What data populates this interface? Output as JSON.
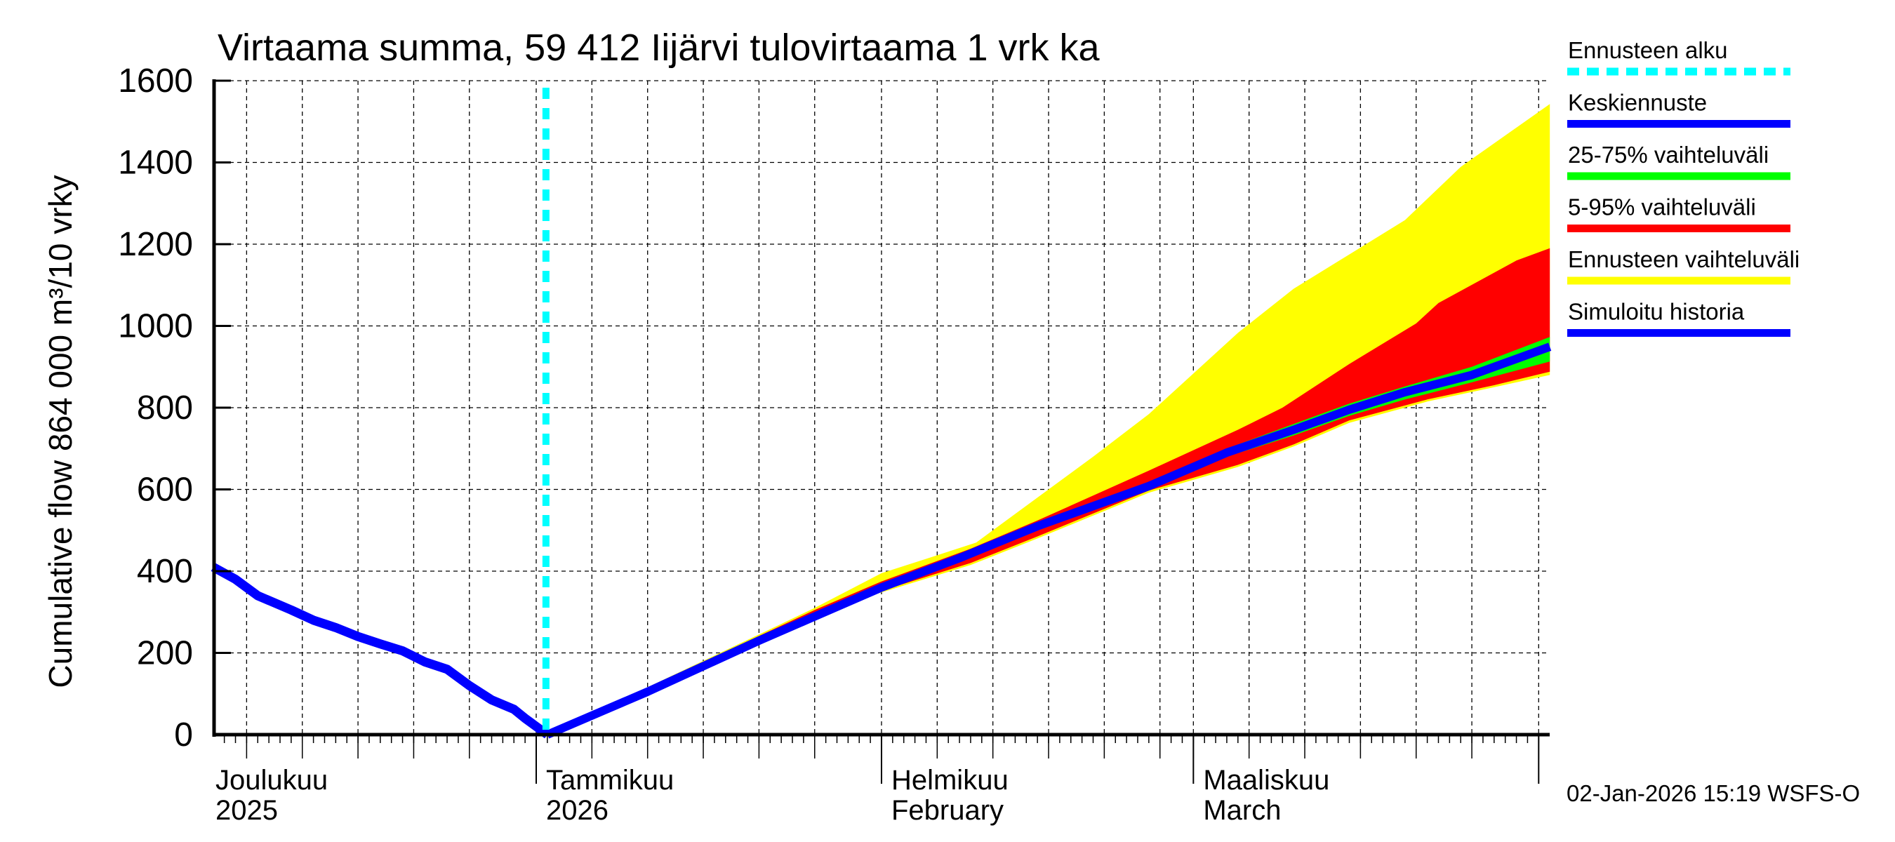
{
  "chart_data": {
    "type": "area",
    "title": "Virtaama summa, 59 412 Iijärvi tulovirtaama 1 vrk ka",
    "ylabel": "Cumulative flow   864 000 m³/10 vrky",
    "xlabel": "",
    "ylim": [
      0,
      1600
    ],
    "yticks": [
      0,
      200,
      400,
      600,
      800,
      1000,
      1200,
      1400,
      1600
    ],
    "grid": true,
    "x_unit": "days since 2026-01-01",
    "xlim": [
      -29,
      91
    ],
    "month_labels": [
      {
        "day": -31,
        "line1": "Joulukuu",
        "line2": "2025"
      },
      {
        "day": 0,
        "line1": "Tammikuu",
        "line2": "2026"
      },
      {
        "day": 31,
        "line1": "Helmikuu",
        "line2": "February"
      },
      {
        "day": 59,
        "line1": "Maaliskuu",
        "line2": "March"
      }
    ],
    "forecast_start_day": 1,
    "legend_position": "right",
    "legend": [
      {
        "label": "Ennusteen alku",
        "color": "#00ffff",
        "style": "dashed"
      },
      {
        "label": "Keskiennuste",
        "color": "#0000ff",
        "style": "solid"
      },
      {
        "label": "25-75% vaihteluväli",
        "color": "#00ff00",
        "style": "solid"
      },
      {
        "label": "5-95% vaihteluväli",
        "color": "#ff0000",
        "style": "solid"
      },
      {
        "label": "Ennusteen vaihteluväli",
        "color": "#ffff00",
        "style": "solid"
      },
      {
        "label": "Simuloitu historia",
        "color": "#0000ff",
        "style": "solid"
      }
    ],
    "series": [
      {
        "name": "Simuloitu historia",
        "x": [
          -29,
          -27,
          -25,
          -22,
          -20,
          -18,
          -16,
          -14,
          -12,
          -10,
          -8,
          -6,
          -4,
          -2,
          -1,
          1
        ],
        "values": [
          410,
          380,
          340,
          305,
          280,
          262,
          240,
          222,
          205,
          178,
          160,
          120,
          85,
          62,
          40,
          0
        ]
      },
      {
        "name": "Keskiennuste",
        "x": [
          1,
          10,
          20,
          31,
          38,
          45,
          55,
          62,
          68,
          73,
          78,
          84,
          91
        ],
        "values": [
          0,
          105,
          230,
          360,
          432,
          510,
          608,
          690,
          746,
          795,
          838,
          880,
          949
        ]
      },
      {
        "name": "25-75% upper",
        "x": [
          1,
          31,
          45,
          55,
          62,
          68,
          73,
          78,
          84,
          91
        ],
        "values": [
          0,
          362,
          515,
          615,
          700,
          760,
          810,
          852,
          900,
          973
        ]
      },
      {
        "name": "25-75% lower",
        "x": [
          1,
          31,
          45,
          55,
          62,
          68,
          73,
          78,
          84,
          91
        ],
        "values": [
          0,
          358,
          505,
          600,
          680,
          732,
          780,
          820,
          862,
          913
        ]
      },
      {
        "name": "5-95% upper",
        "x": [
          1,
          25,
          31,
          39,
          45,
          55,
          63,
          67,
          73,
          79,
          81,
          88,
          91
        ],
        "values": [
          0,
          305,
          375,
          455,
          524,
          646,
          746,
          800,
          907,
          1006,
          1056,
          1160,
          1190
        ]
      },
      {
        "name": "5-95% lower",
        "x": [
          1,
          25,
          31,
          39,
          45,
          55,
          63,
          68,
          73,
          80,
          86,
          91
        ],
        "values": [
          0,
          298,
          352,
          420,
          485,
          597,
          660,
          710,
          769,
          820,
          855,
          888
        ]
      },
      {
        "name": "Ennusteen vaihteluväli upper",
        "x": [
          1,
          20,
          25,
          31,
          35,
          39.5,
          46,
          50,
          55,
          63,
          68,
          73,
          78,
          83,
          91
        ],
        "values": [
          0,
          245,
          310,
          395,
          430,
          470,
          600,
          680,
          784,
          983,
          1091,
          1175,
          1259,
          1389,
          1543
        ]
      },
      {
        "name": "Ennusteen vaihteluväli lower",
        "x": [
          1,
          25,
          31,
          39,
          45,
          55,
          63,
          68,
          73,
          80,
          86,
          91
        ],
        "values": [
          0,
          295,
          348,
          415,
          480,
          592,
          655,
          705,
          763,
          815,
          850,
          880
        ]
      }
    ]
  },
  "footer": {
    "timestamp": "02-Jan-2026 15:19 WSFS-O"
  }
}
